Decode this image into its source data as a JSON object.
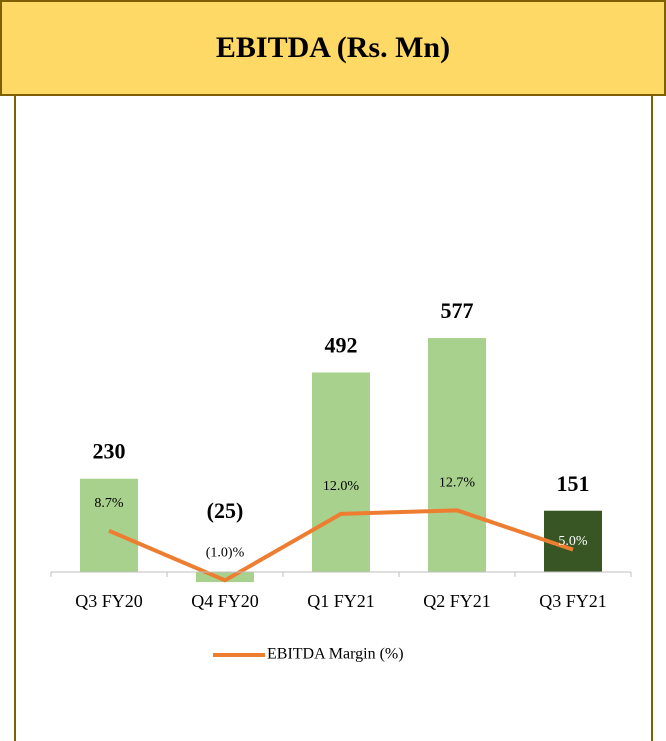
{
  "chart_data": {
    "type": "bar",
    "title": "EBITDA (Rs. Mn)",
    "categories": [
      "Q3 FY20",
      "Q4 FY20",
      "Q1 FY21",
      "Q2 FY21",
      "Q3 FY21"
    ],
    "series": [
      {
        "type": "bar",
        "values": [
          230,
          -25,
          492,
          577,
          151
        ],
        "value_labels": [
          "230",
          "(25)",
          "492",
          "577",
          "151"
        ],
        "colors": [
          "#a9d18e",
          "#a9d18e",
          "#a9d18e",
          "#a9d18e",
          "#375623"
        ]
      },
      {
        "type": "line",
        "name": "EBITDA Margin (%)",
        "color": "#ed7d31",
        "axis": "y2",
        "values": [
          8.7,
          -1.0,
          12.0,
          12.7,
          5.0
        ],
        "value_labels": [
          "8.7%",
          "(1.0)%",
          "12.0%",
          "12.7%",
          "5.0%"
        ]
      }
    ],
    "ylim": [
      -100,
      1000
    ],
    "y2lim": [
      -7.3,
      80
    ],
    "legend": "bottom"
  }
}
